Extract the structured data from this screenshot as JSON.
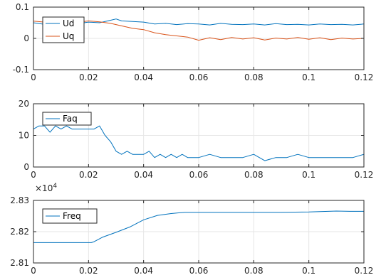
{
  "chart_data": [
    {
      "type": "line",
      "xlim": [
        0,
        0.12
      ],
      "ylim": [
        -0.1,
        0.1
      ],
      "xticks": [
        "0",
        "0.02",
        "0.04",
        "0.06",
        "0.08",
        "0.1",
        "0.12"
      ],
      "yticks": [
        "-0.1",
        "0",
        "0.1"
      ],
      "grid": true,
      "legend_position": "top-left",
      "series": [
        {
          "name": "Ud",
          "color": "#0072BD",
          "x": [
            0,
            0.004,
            0.008,
            0.012,
            0.016,
            0.02,
            0.024,
            0.028,
            0.03,
            0.032,
            0.036,
            0.04,
            0.044,
            0.048,
            0.052,
            0.056,
            0.06,
            0.064,
            0.068,
            0.072,
            0.076,
            0.08,
            0.084,
            0.088,
            0.092,
            0.096,
            0.1,
            0.104,
            0.108,
            0.112,
            0.116,
            0.12
          ],
          "y": [
            0.05,
            0.045,
            0.048,
            0.05,
            0.047,
            0.052,
            0.05,
            0.058,
            0.062,
            0.056,
            0.054,
            0.052,
            0.046,
            0.048,
            0.044,
            0.047,
            0.046,
            0.043,
            0.048,
            0.045,
            0.044,
            0.046,
            0.043,
            0.047,
            0.044,
            0.045,
            0.043,
            0.046,
            0.044,
            0.045,
            0.043,
            0.046
          ]
        },
        {
          "name": "Uq",
          "color": "#D95319",
          "x": [
            0,
            0.004,
            0.008,
            0.012,
            0.016,
            0.02,
            0.024,
            0.028,
            0.032,
            0.036,
            0.04,
            0.044,
            0.048,
            0.052,
            0.056,
            0.06,
            0.064,
            0.068,
            0.072,
            0.076,
            0.08,
            0.084,
            0.088,
            0.092,
            0.096,
            0.1,
            0.104,
            0.108,
            0.112,
            0.116,
            0.12
          ],
          "y": [
            0.055,
            0.052,
            0.05,
            0.054,
            0.051,
            0.056,
            0.053,
            0.048,
            0.04,
            0.032,
            0.028,
            0.018,
            0.012,
            0.008,
            0.004,
            -0.006,
            0.002,
            -0.004,
            0.003,
            -0.002,
            0.002,
            -0.005,
            0.001,
            -0.002,
            0.003,
            -0.003,
            0.002,
            -0.004,
            0.001,
            -0.002,
            0
          ]
        }
      ]
    },
    {
      "type": "line",
      "xlim": [
        0,
        0.12
      ],
      "ylim": [
        0,
        20
      ],
      "xticks": [
        "0",
        "0.02",
        "0.04",
        "0.06",
        "0.08",
        "0.1",
        "0.12"
      ],
      "yticks": [
        "0",
        "10",
        "20"
      ],
      "grid": true,
      "legend_position": "top-left",
      "series": [
        {
          "name": "Faq",
          "color": "#0072BD",
          "x": [
            0,
            0.002,
            0.004,
            0.006,
            0.008,
            0.01,
            0.012,
            0.014,
            0.016,
            0.018,
            0.02,
            0.022,
            0.024,
            0.026,
            0.028,
            0.03,
            0.032,
            0.034,
            0.036,
            0.038,
            0.04,
            0.042,
            0.044,
            0.046,
            0.048,
            0.05,
            0.052,
            0.054,
            0.056,
            0.058,
            0.06,
            0.064,
            0.068,
            0.072,
            0.076,
            0.08,
            0.084,
            0.088,
            0.092,
            0.096,
            0.1,
            0.104,
            0.108,
            0.112,
            0.116,
            0.12
          ],
          "y": [
            12,
            13,
            13,
            11,
            13,
            12,
            13,
            12,
            12,
            12,
            12,
            12,
            13,
            10,
            8,
            5,
            4,
            5,
            4,
            4,
            4,
            5,
            3,
            4,
            3,
            4,
            3,
            4,
            3,
            3,
            3,
            4,
            3,
            3,
            3,
            4,
            2,
            3,
            3,
            4,
            3,
            3,
            3,
            3,
            3,
            4
          ]
        }
      ]
    },
    {
      "type": "line",
      "xlim": [
        0,
        0.12
      ],
      "ylim": [
        2.81,
        2.83
      ],
      "y_exponent": "×10",
      "y_exponent_power": "4",
      "xticks": [
        "0",
        "0.02",
        "0.04",
        "0.06",
        "0.08",
        "0.1",
        "0.12"
      ],
      "yticks": [
        "2.81",
        "2.82",
        "2.83"
      ],
      "grid": true,
      "legend_position": "top-left",
      "series": [
        {
          "name": "Freq",
          "color": "#0072BD",
          "x": [
            0,
            0.021,
            0.022,
            0.025,
            0.03,
            0.035,
            0.04,
            0.045,
            0.05,
            0.055,
            0.06,
            0.07,
            0.08,
            0.09,
            0.1,
            0.11,
            0.115,
            0.12
          ],
          "y": [
            2.8165,
            2.8165,
            2.8168,
            2.8182,
            2.8198,
            2.8215,
            2.8238,
            2.8252,
            2.8258,
            2.8262,
            2.8262,
            2.8262,
            2.8262,
            2.8262,
            2.8263,
            2.8266,
            2.8265,
            2.8265
          ]
        }
      ]
    }
  ]
}
